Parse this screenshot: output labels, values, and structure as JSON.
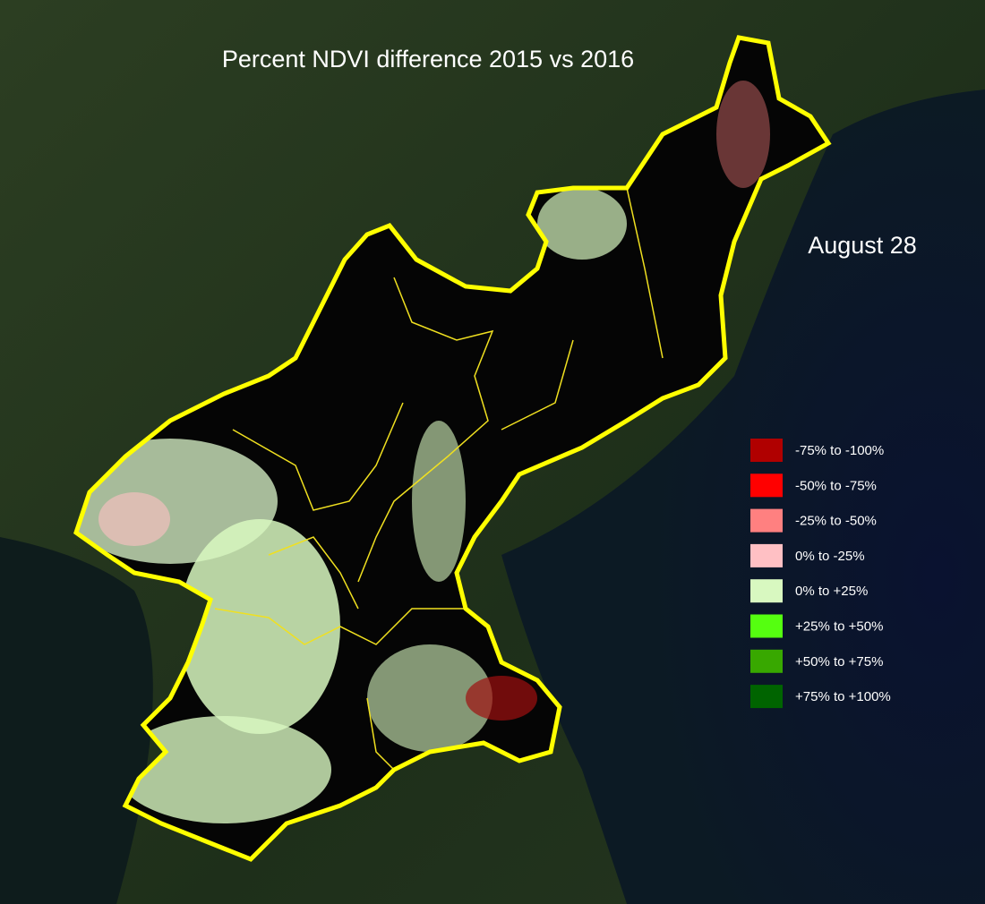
{
  "title": "Percent NDVI difference 2015 vs 2016",
  "date": "August 28",
  "legend": [
    {
      "label": "-75% to -100%",
      "color": "#b00000"
    },
    {
      "label": "-50% to -75%",
      "color": "#ff0000"
    },
    {
      "label": "-25% to -50%",
      "color": "#ff8080"
    },
    {
      "label": "0% to -25%",
      "color": "#ffc0c4"
    },
    {
      "label": "0% to +25%",
      "color": "#d8f8c0"
    },
    {
      "label": "+25% to +50%",
      "color": "#55ff10"
    },
    {
      "label": "+50% to +75%",
      "color": "#38a800"
    },
    {
      "label": "+75% to +100%",
      "color": "#006400"
    }
  ]
}
